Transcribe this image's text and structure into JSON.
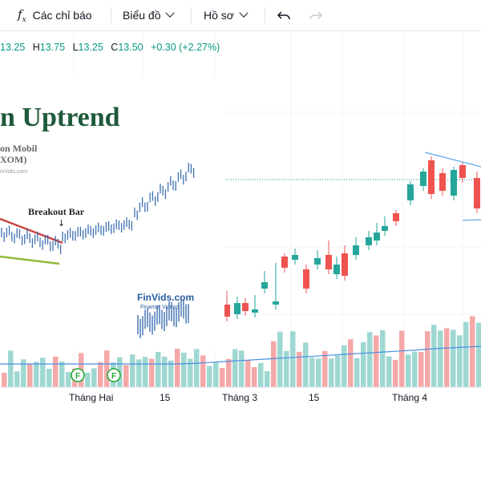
{
  "toolbar": {
    "indicators_icon": "fx-icon",
    "indicators_label": "Các chỉ báo",
    "chart_label": "Biểu đồ",
    "profile_label": "Hồ sơ",
    "undo_icon": "undo-icon",
    "redo_icon": "redo-icon"
  },
  "ohlc": {
    "open_value": "13.25",
    "high_key": "H",
    "high_value": "13.75",
    "low_key": "L",
    "low_value": "13.25",
    "close_key": "C",
    "close_value": "13.50",
    "change": "+0.30 (+2.27%)"
  },
  "overlay": {
    "title": "n Uptrend",
    "company": "on Mobil",
    "ticker": "XOM)",
    "site_small": "inVids.com",
    "breakout_label": "Breakout Bar",
    "arrow": "↓",
    "logo_text": "FinVids.com",
    "logo_sub": "Finance Videos"
  },
  "xaxis": {
    "labels": [
      "Tháng Hai",
      "15",
      "Tháng 3",
      "15",
      "Tháng 4"
    ]
  },
  "event_marker": "F",
  "colors": {
    "up": "#26a69a",
    "down": "#ef5350",
    "up_volume": "#9fd7d2",
    "down_volume": "#f4a9a8",
    "volume_ma": "#2962ff",
    "accent_green": "#089981"
  }
}
